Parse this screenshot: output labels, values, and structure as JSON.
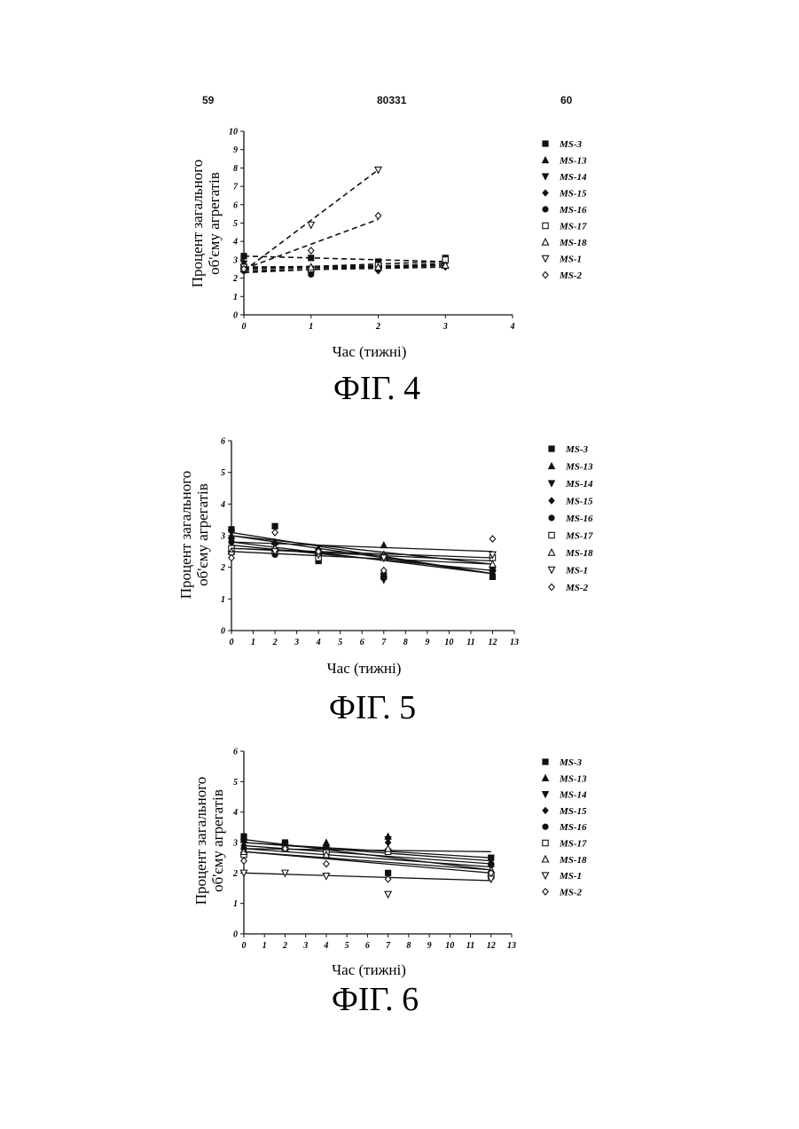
{
  "header": {
    "left": "59",
    "center": "80331",
    "right": "60"
  },
  "series_names": [
    "MS-3",
    "MS-13",
    "MS-14",
    "MS-15",
    "MS-16",
    "MS-17",
    "MS-18",
    "MS-1",
    "MS-2"
  ],
  "markers": [
    "square-filled",
    "triangle-up-filled",
    "triangle-down-filled",
    "diamond-filled",
    "circle-filled",
    "square-open",
    "triangle-up-open",
    "triangle-down-open",
    "diamond-open"
  ],
  "chart_data": [
    {
      "type": "scatter",
      "figure_label": "ФІГ. 4",
      "ylabel_lines": [
        "Процент загального",
        "об'єму агрегатів"
      ],
      "xlabel": "Час (тижні)",
      "xlim": [
        0,
        4
      ],
      "ylim": [
        0,
        10
      ],
      "xticks": [
        0,
        1,
        2,
        3,
        4
      ],
      "yticks": [
        0,
        1,
        2,
        3,
        4,
        5,
        6,
        7,
        8,
        9,
        10
      ],
      "legend_position": "right",
      "line_style": "dashed",
      "series": [
        {
          "name": "MS-3",
          "x": [
            0,
            1,
            2,
            3
          ],
          "y": [
            3.2,
            3.1,
            2.9,
            3.1
          ],
          "fit": [
            3.2,
            2.9
          ]
        },
        {
          "name": "MS-13",
          "x": [
            0,
            1,
            2,
            3
          ],
          "y": [
            2.7,
            2.5,
            2.6,
            2.7
          ],
          "fit": [
            2.6,
            2.6
          ]
        },
        {
          "name": "MS-14",
          "x": [
            0,
            1,
            2,
            3
          ],
          "y": [
            2.8,
            2.4,
            2.5,
            2.8
          ],
          "fit": [
            2.6,
            2.7
          ]
        },
        {
          "name": "MS-15",
          "x": [
            0,
            1,
            2,
            3
          ],
          "y": [
            2.5,
            2.3,
            2.4,
            2.6
          ],
          "fit": [
            2.4,
            2.6
          ]
        },
        {
          "name": "MS-16",
          "x": [
            0,
            1,
            2,
            3
          ],
          "y": [
            2.4,
            2.2,
            2.5,
            2.9
          ],
          "fit": [
            2.3,
            2.8
          ]
        },
        {
          "name": "MS-17",
          "x": [
            0,
            1,
            2,
            3
          ],
          "y": [
            2.6,
            2.5,
            2.7,
            3.0
          ],
          "fit": [
            2.5,
            2.9
          ]
        },
        {
          "name": "MS-18",
          "x": [
            0,
            1,
            2,
            3
          ],
          "y": [
            2.5,
            2.6,
            2.6,
            2.7
          ],
          "fit": [
            2.5,
            2.7
          ]
        },
        {
          "name": "MS-1",
          "x": [
            0,
            1,
            2
          ],
          "y": [
            2.6,
            4.9,
            7.9
          ],
          "fit": [
            2.4,
            7.9
          ]
        },
        {
          "name": "MS-2",
          "x": [
            0,
            1,
            2
          ],
          "y": [
            2.5,
            3.5,
            5.4
          ],
          "fit": [
            2.5,
            5.2
          ]
        }
      ]
    },
    {
      "type": "scatter",
      "figure_label": "ФІГ. 5",
      "ylabel_lines": [
        "Процент загального",
        "об'єму агрегатів"
      ],
      "xlabel": "Час (тижні)",
      "xlim": [
        0,
        13
      ],
      "ylim": [
        0,
        6
      ],
      "xticks": [
        0,
        1,
        2,
        3,
        4,
        5,
        6,
        7,
        8,
        9,
        10,
        11,
        12,
        13
      ],
      "yticks": [
        0,
        1,
        2,
        3,
        4,
        5,
        6
      ],
      "legend_position": "right",
      "line_style": "solid",
      "series": [
        {
          "name": "MS-3",
          "x": [
            0,
            2,
            4,
            7,
            12
          ],
          "y": [
            3.2,
            3.3,
            2.2,
            1.7,
            1.7
          ],
          "fit": [
            3.1,
            1.8
          ]
        },
        {
          "name": "MS-13",
          "x": [
            0,
            2,
            4,
            7,
            12
          ],
          "y": [
            3.0,
            2.8,
            2.6,
            2.7,
            2.0
          ],
          "fit": [
            3.0,
            2.1
          ]
        },
        {
          "name": "MS-14",
          "x": [
            0,
            2,
            4,
            7,
            12
          ],
          "y": [
            3.1,
            2.7,
            2.5,
            1.6,
            1.8
          ],
          "fit": [
            3.0,
            1.8
          ]
        },
        {
          "name": "MS-15",
          "x": [
            0,
            2,
            4,
            7,
            12
          ],
          "y": [
            2.9,
            2.5,
            2.4,
            1.7,
            1.9
          ],
          "fit": [
            2.8,
            1.8
          ]
        },
        {
          "name": "MS-16",
          "x": [
            0,
            2,
            4,
            7,
            12
          ],
          "y": [
            2.8,
            2.4,
            2.4,
            1.8,
            2.0
          ],
          "fit": [
            2.7,
            1.9
          ]
        },
        {
          "name": "MS-17",
          "x": [
            0,
            2,
            4,
            7,
            12
          ],
          "y": [
            2.6,
            2.5,
            2.3,
            2.3,
            2.3
          ],
          "fit": [
            2.6,
            2.2
          ]
        },
        {
          "name": "MS-18",
          "x": [
            0,
            2,
            4,
            7,
            12
          ],
          "y": [
            2.5,
            2.6,
            2.5,
            2.4,
            2.1
          ],
          "fit": [
            2.5,
            2.1
          ]
        },
        {
          "name": "MS-1",
          "x": [
            0,
            2,
            4,
            7,
            12
          ],
          "y": [
            2.4,
            2.5,
            2.4,
            2.3,
            2.4
          ],
          "fit": [
            2.6,
            2.3
          ]
        },
        {
          "name": "MS-2",
          "x": [
            0,
            2,
            4,
            7,
            12
          ],
          "y": [
            2.3,
            3.1,
            2.5,
            1.9,
            2.9
          ],
          "fit": [
            2.8,
            2.5
          ]
        }
      ]
    },
    {
      "type": "scatter",
      "figure_label": "ФІГ. 6",
      "ylabel_lines": [
        "Процент загального",
        "об'єму агрегатів"
      ],
      "xlabel": "Час (тижні)",
      "xlim": [
        0,
        13
      ],
      "ylim": [
        0,
        6
      ],
      "xticks": [
        0,
        1,
        2,
        3,
        4,
        5,
        6,
        7,
        8,
        9,
        10,
        11,
        12,
        13
      ],
      "yticks": [
        0,
        1,
        2,
        3,
        4,
        5,
        6
      ],
      "legend_position": "right",
      "line_style": "solid",
      "series": [
        {
          "name": "MS-3",
          "x": [
            0,
            2,
            4,
            7,
            12
          ],
          "y": [
            3.2,
            3.0,
            2.8,
            2.0,
            2.5
          ],
          "fit": [
            3.1,
            2.1
          ]
        },
        {
          "name": "MS-13",
          "x": [
            0,
            2,
            4,
            7,
            12
          ],
          "y": [
            3.1,
            2.9,
            3.0,
            3.2,
            2.3
          ],
          "fit": [
            3.0,
            2.5
          ]
        },
        {
          "name": "MS-14",
          "x": [
            0,
            2,
            4,
            7,
            12
          ],
          "y": [
            3.0,
            2.9,
            2.8,
            3.1,
            2.2
          ],
          "fit": [
            3.0,
            2.4
          ]
        },
        {
          "name": "MS-15",
          "x": [
            0,
            2,
            4,
            7,
            12
          ],
          "y": [
            2.9,
            2.8,
            2.7,
            3.0,
            2.3
          ],
          "fit": [
            2.9,
            2.3
          ]
        },
        {
          "name": "MS-16",
          "x": [
            0,
            2,
            4,
            7,
            12
          ],
          "y": [
            2.8,
            2.9,
            2.6,
            2.7,
            2.3
          ],
          "fit": [
            2.8,
            2.2
          ]
        },
        {
          "name": "MS-17",
          "x": [
            0,
            2,
            4,
            7,
            12
          ],
          "y": [
            2.6,
            2.8,
            2.7,
            2.7,
            1.9
          ],
          "fit": [
            2.7,
            2.0
          ]
        },
        {
          "name": "MS-18",
          "x": [
            0,
            2,
            4,
            7,
            12
          ],
          "y": [
            2.7,
            2.8,
            2.6,
            2.8,
            2.1
          ],
          "fit": [
            2.8,
            2.7
          ]
        },
        {
          "name": "MS-1",
          "x": [
            0,
            2,
            4,
            7,
            12
          ],
          "y": [
            2.0,
            2.0,
            1.9,
            1.3,
            1.8
          ],
          "fit": [
            2.0,
            1.75
          ]
        },
        {
          "name": "MS-2",
          "x": [
            0,
            2,
            4,
            7,
            12
          ],
          "y": [
            2.4,
            2.8,
            2.3,
            1.8,
            2.0
          ],
          "fit": [
            2.7,
            2.1
          ]
        }
      ]
    }
  ]
}
